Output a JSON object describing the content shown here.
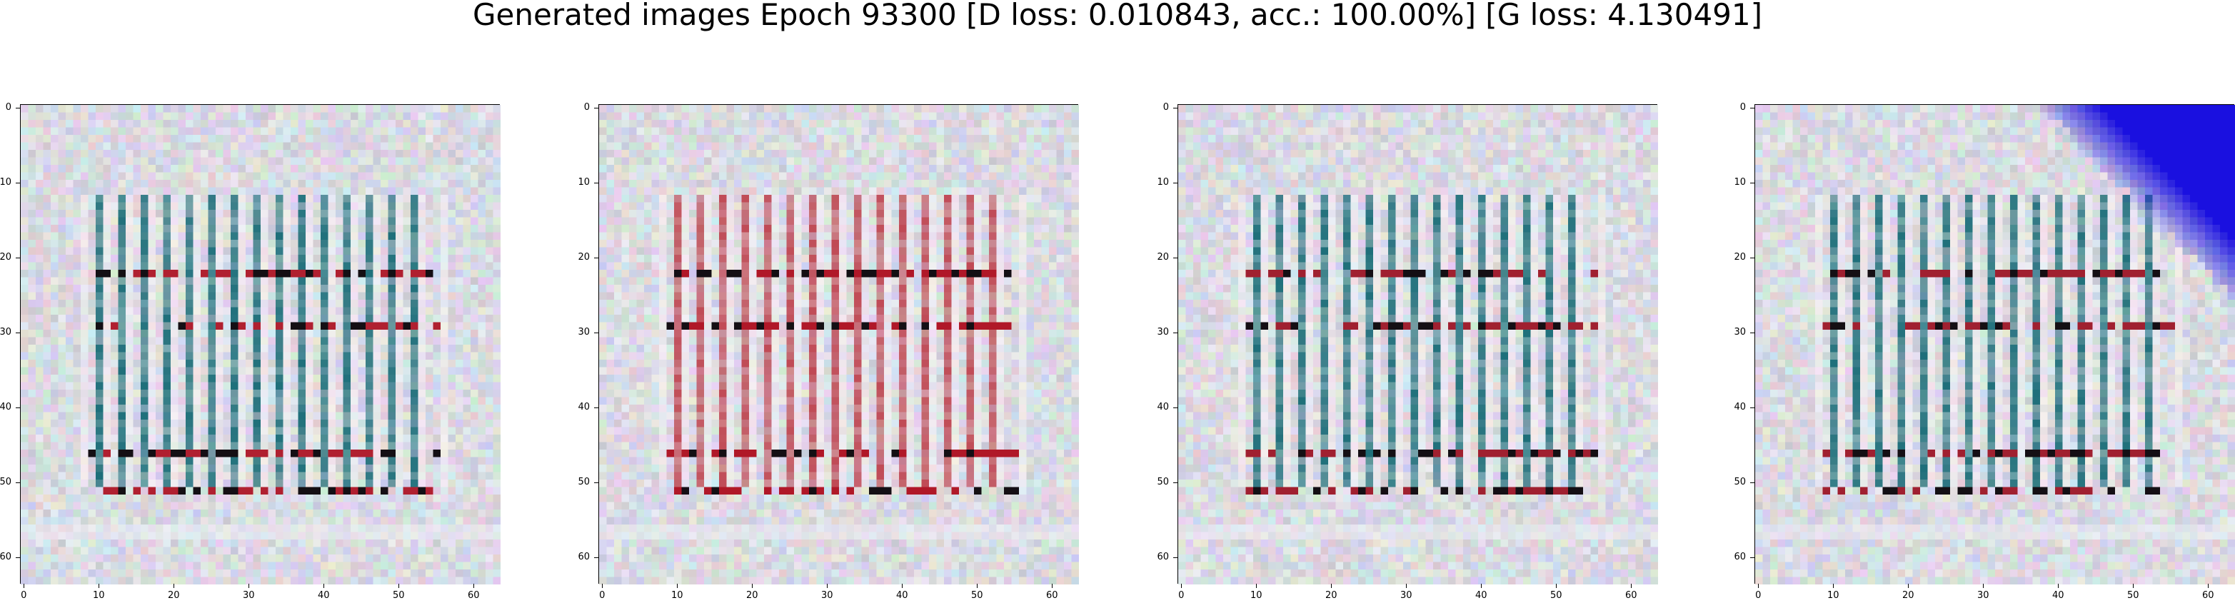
{
  "figure": {
    "title": "Generated images Epoch 93300 [D loss: 0.010843, acc.: 100.00%] [G loss: 4.130491]"
  },
  "axes": {
    "xticks": [
      "0",
      "10",
      "20",
      "30",
      "40",
      "50",
      "60"
    ],
    "yticks": [
      "0",
      "10",
      "20",
      "30",
      "40",
      "50",
      "60"
    ],
    "range": [
      0,
      63
    ]
  },
  "panels": [
    {
      "name": "generated-image-1",
      "stripe_color": "#1e6f7a",
      "accent_color": "#b02030",
      "corner": ""
    },
    {
      "name": "generated-image-2",
      "stripe_color": "#c04a55",
      "accent_color": "#b01828",
      "corner": ""
    },
    {
      "name": "generated-image-3",
      "stripe_color": "#1e6f7a",
      "accent_color": "#a02030",
      "corner": ""
    },
    {
      "name": "generated-image-4",
      "stripe_color": "#1e6f7a",
      "accent_color": "#a02030",
      "corner": "#1a10e0"
    }
  ]
}
